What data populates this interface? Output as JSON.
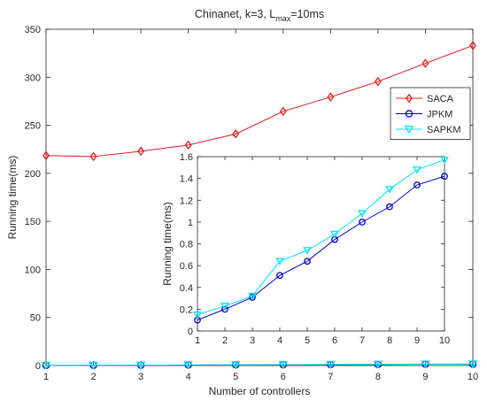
{
  "chart_data": [
    {
      "type": "line",
      "title_prefix": "Chinanet, k=3, L",
      "title_subscript": "max",
      "title_suffix": "=10ms",
      "xlabel": "Number of controllers",
      "ylabel": "Running time(ms)",
      "x": [
        1,
        2,
        3,
        4,
        5,
        6,
        7,
        8,
        9,
        10
      ],
      "xlim": [
        1,
        10
      ],
      "ylim": [
        0,
        350
      ],
      "xticks": [
        1,
        2,
        3,
        4,
        5,
        6,
        7,
        8,
        9,
        10
      ],
      "yticks": [
        0,
        50,
        100,
        150,
        200,
        250,
        300,
        350
      ],
      "grid": false,
      "legend_position": "right",
      "series": [
        {
          "name": "SACA",
          "color": "#e31a1c",
          "marker": "diamond",
          "values": [
            218.5,
            217.5,
            223,
            229.5,
            241,
            264.5,
            279.5,
            295.5,
            314.5,
            333
          ]
        },
        {
          "name": "JPKM",
          "color": "#0000cc",
          "marker": "circle",
          "values": [
            0.1,
            0.2,
            0.31,
            0.51,
            0.64,
            0.84,
            1.0,
            1.14,
            1.34,
            1.42
          ]
        },
        {
          "name": "SAPKM",
          "color": "#00e5ee",
          "marker": "triangle-down",
          "values": [
            0.15,
            0.23,
            0.32,
            0.64,
            0.74,
            0.89,
            1.08,
            1.3,
            1.48,
            1.57
          ]
        }
      ]
    },
    {
      "type": "line",
      "xlabel": "",
      "ylabel": "Running time(ms)",
      "x": [
        1,
        2,
        3,
        4,
        5,
        6,
        7,
        8,
        9,
        10
      ],
      "xlim": [
        1,
        10
      ],
      "ylim": [
        0,
        1.6
      ],
      "xticks": [
        1,
        2,
        3,
        4,
        5,
        6,
        7,
        8,
        9,
        10
      ],
      "yticks": [
        0,
        0.2,
        0.4,
        0.6,
        0.8,
        1,
        1.2,
        1.4,
        1.6
      ],
      "grid": false,
      "series": [
        {
          "color": "#0000cc",
          "marker": "circle",
          "values": [
            0.1,
            0.2,
            0.31,
            0.51,
            0.64,
            0.84,
            1.0,
            1.14,
            1.34,
            1.42
          ]
        },
        {
          "color": "#00e5ee",
          "marker": "triangle-down",
          "values": [
            0.15,
            0.23,
            0.32,
            0.64,
            0.74,
            0.89,
            1.08,
            1.3,
            1.48,
            1.57
          ]
        }
      ]
    }
  ]
}
